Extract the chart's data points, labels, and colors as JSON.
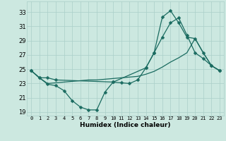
{
  "bg_color": "#cce8e0",
  "grid_color": "#aacfc8",
  "line_color": "#1a6b60",
  "xlabel": "Humidex (Indice chaleur)",
  "xlim": [
    -0.5,
    23.5
  ],
  "ylim": [
    18.5,
    34.5
  ],
  "yticks": [
    19,
    21,
    23,
    25,
    27,
    29,
    31,
    33
  ],
  "xticks": [
    0,
    1,
    2,
    3,
    4,
    5,
    6,
    7,
    8,
    9,
    10,
    11,
    12,
    13,
    14,
    15,
    16,
    17,
    18,
    19,
    20,
    21,
    22,
    23
  ],
  "line1_x": [
    0,
    1,
    2,
    3,
    4,
    5,
    6,
    7,
    8,
    9,
    10,
    11,
    12,
    13,
    14,
    15,
    16,
    17,
    18,
    19,
    20,
    21,
    22,
    23
  ],
  "line1_y": [
    24.8,
    23.8,
    22.9,
    22.7,
    22.0,
    20.6,
    19.7,
    19.3,
    19.3,
    21.8,
    23.2,
    23.1,
    23.0,
    23.5,
    25.2,
    27.3,
    29.5,
    31.5,
    32.2,
    29.8,
    27.3,
    26.5,
    25.5,
    24.8
  ],
  "line2_x": [
    0,
    1,
    2,
    3,
    4,
    5,
    6,
    7,
    8,
    9,
    10,
    11,
    12,
    13,
    14,
    15,
    16,
    17,
    18,
    19,
    20,
    21,
    22,
    23
  ],
  "line2_y": [
    24.8,
    23.8,
    23.0,
    23.1,
    23.2,
    23.3,
    23.4,
    23.5,
    23.5,
    23.6,
    23.7,
    23.8,
    23.9,
    24.0,
    24.3,
    24.7,
    25.3,
    26.0,
    26.6,
    27.3,
    29.3,
    27.3,
    25.5,
    24.8
  ],
  "line3_x": [
    0,
    1,
    2,
    3,
    10,
    14,
    15,
    16,
    17,
    18,
    19,
    20,
    21,
    22,
    23
  ],
  "line3_y": [
    24.8,
    23.8,
    23.8,
    23.5,
    23.2,
    25.2,
    27.3,
    32.3,
    33.2,
    31.5,
    29.5,
    29.3,
    27.3,
    25.5,
    24.8
  ]
}
